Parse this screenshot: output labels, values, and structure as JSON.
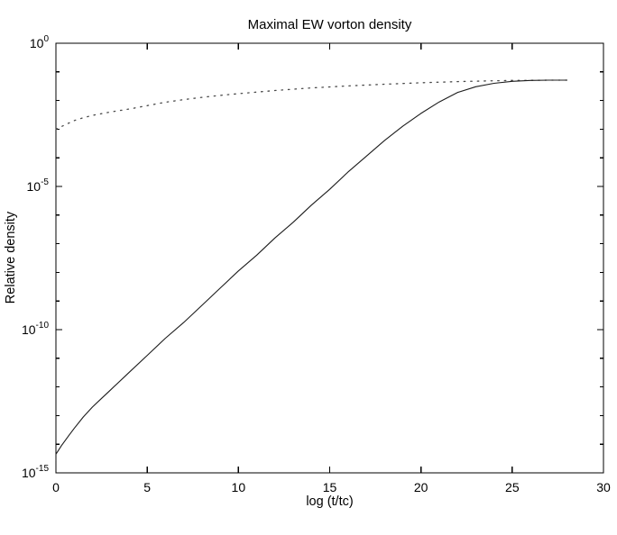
{
  "figure": {
    "background": "#ffffff",
    "axis_color": "#000000",
    "text_color": "#000000"
  },
  "chart_data": {
    "type": "line",
    "title": "Maximal EW vorton density",
    "xlabel": "log (t/tc)",
    "ylabel": "Relative density",
    "grid": false,
    "legend": "none",
    "xlim": [
      0,
      30
    ],
    "x_ticks": [
      0,
      5,
      10,
      15,
      20,
      25,
      30
    ],
    "x_tick_labels": [
      "0",
      "5",
      "10",
      "15",
      "20",
      "25",
      "30"
    ],
    "y_scale": "log10",
    "ylim_log10": [
      -15,
      0
    ],
    "y_major_ticks": [
      {
        "exp": 0,
        "label": "10^0"
      },
      {
        "exp": -5,
        "label": "10^-5"
      },
      {
        "exp": -10,
        "label": "10^-10"
      },
      {
        "exp": -15,
        "label": "10^-15"
      }
    ],
    "y_minor_ticks": "every decade",
    "series": [
      {
        "name": "dotted-curve",
        "style": "dotted",
        "color": "#4a4a4a",
        "width": 1.3,
        "x": [
          0,
          0.5,
          1,
          1.5,
          2,
          3,
          4,
          5,
          6,
          7,
          8,
          9,
          10,
          12,
          14,
          16,
          18,
          20,
          22,
          24,
          25,
          26,
          27,
          28
        ],
        "log10_y": [
          -3.0,
          -2.85,
          -2.7,
          -2.6,
          -2.52,
          -2.4,
          -2.3,
          -2.18,
          -2.06,
          -1.97,
          -1.89,
          -1.82,
          -1.76,
          -1.65,
          -1.56,
          -1.49,
          -1.43,
          -1.38,
          -1.34,
          -1.31,
          -1.3,
          -1.295,
          -1.29,
          -1.29
        ]
      },
      {
        "name": "solid-curve",
        "style": "solid",
        "color": "#1c1c1c",
        "width": 1.1,
        "x": [
          0,
          0,
          0.3,
          0.7,
          1,
          1.5,
          2,
          2.5,
          3,
          4,
          5,
          6,
          7,
          8,
          9,
          10,
          11,
          12,
          13,
          14,
          15,
          16,
          17,
          18,
          19,
          20,
          21,
          22,
          23,
          24,
          25,
          26,
          27,
          28
        ],
        "log10_y": [
          -14.55,
          -14.35,
          -14.05,
          -13.7,
          -13.45,
          -13.05,
          -12.7,
          -12.4,
          -12.1,
          -11.5,
          -10.9,
          -10.3,
          -9.75,
          -9.15,
          -8.55,
          -7.95,
          -7.4,
          -6.8,
          -6.25,
          -5.65,
          -5.1,
          -4.5,
          -3.95,
          -3.4,
          -2.9,
          -2.45,
          -2.05,
          -1.72,
          -1.52,
          -1.4,
          -1.33,
          -1.3,
          -1.29,
          -1.29
        ]
      }
    ]
  }
}
